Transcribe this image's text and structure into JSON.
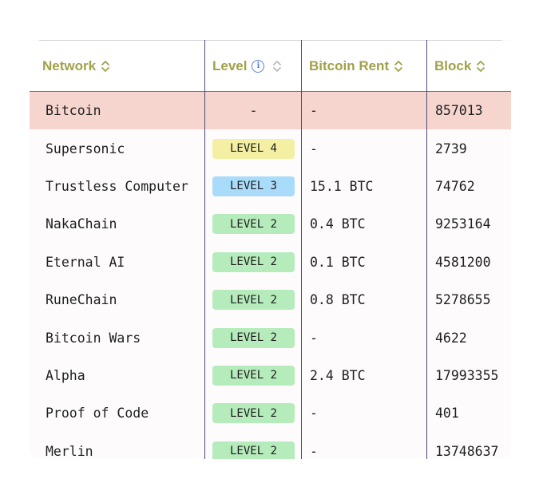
{
  "columns": {
    "network": "Network",
    "level": "Level",
    "rent": "Bitcoin Rent",
    "block": "Block"
  },
  "rows": [
    {
      "network": "Bitcoin",
      "level": "-",
      "rent": "-",
      "block": "857013",
      "highlight": true
    },
    {
      "network": "Supersonic",
      "level": "LEVEL 4",
      "rent": "-",
      "block": "2739"
    },
    {
      "network": "Trustless Computer",
      "level": "LEVEL 3",
      "rent": "15.1 BTC",
      "block": "74762"
    },
    {
      "network": "NakaChain",
      "level": "LEVEL 2",
      "rent": "0.4 BTC",
      "block": "9253164"
    },
    {
      "network": "Eternal AI",
      "level": "LEVEL 2",
      "rent": "0.1 BTC",
      "block": "4581200"
    },
    {
      "network": "RuneChain",
      "level": "LEVEL 2",
      "rent": "0.8 BTC",
      "block": "5278655"
    },
    {
      "network": "Bitcoin Wars",
      "level": "LEVEL 2",
      "rent": "-",
      "block": "4622"
    },
    {
      "network": "Alpha",
      "level": "LEVEL 2",
      "rent": "2.4 BTC",
      "block": "17993355"
    },
    {
      "network": "Proof of Code",
      "level": "LEVEL 2",
      "rent": "-",
      "block": "401"
    },
    {
      "network": "Merlin",
      "level": "LEVEL 2",
      "rent": "-",
      "block": "13748637"
    }
  ],
  "colors": {
    "header_text": "#a1a14a",
    "highlight_row": "#f7d5cf",
    "level4": "#f4efa3",
    "level3": "#a9dcfb",
    "level2": "#b6ecbc"
  },
  "icons": {
    "sort": "chevron-up-down-icon",
    "info": "info-circle-icon"
  }
}
